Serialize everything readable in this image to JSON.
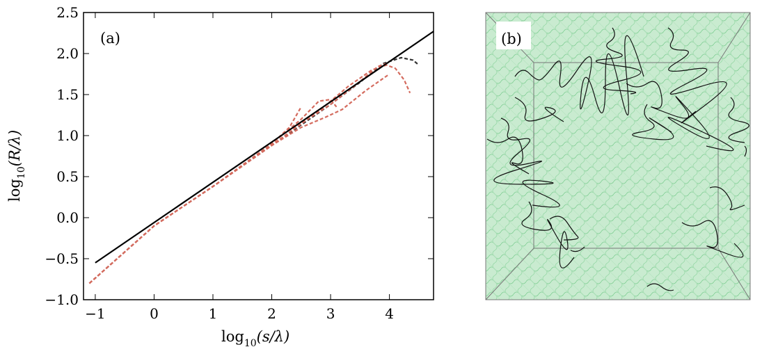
{
  "chart_data": [
    {
      "type": "line",
      "panel_label": "(a)",
      "xlabel_main": "log",
      "xlabel_sub": "10",
      "xlabel_arg": "(s/λ)",
      "ylabel_main": "log",
      "ylabel_sub": "10",
      "ylabel_arg": "(R/λ)",
      "xlim": [
        -1.2,
        4.75
      ],
      "ylim": [
        -1.0,
        2.5
      ],
      "xticks": [
        -1,
        0,
        1,
        2,
        3,
        4
      ],
      "xtick_labels": [
        "−1",
        "0",
        "1",
        "2",
        "3",
        "4"
      ],
      "yticks": [
        -1.0,
        -0.5,
        0.0,
        0.5,
        1.0,
        1.5,
        2.0,
        2.5
      ],
      "ytick_labels": [
        "−1.0",
        "−0.5",
        "0.0",
        "0.5",
        "1.0",
        "1.5",
        "2.0",
        "2.5"
      ],
      "grid": false,
      "fit_line": {
        "color": "#000000",
        "style": "solid",
        "points": [
          [
            -1.0,
            -0.55
          ],
          [
            4.75,
            2.27
          ]
        ]
      },
      "series": [
        {
          "color": "#333333",
          "style": "dashed",
          "points": [
            [
              -1.1,
              -0.8
            ],
            [
              0,
              -0.1
            ],
            [
              1,
              0.38
            ],
            [
              2,
              0.88
            ],
            [
              3,
              1.38
            ],
            [
              3.5,
              1.65
            ],
            [
              3.9,
              1.88
            ],
            [
              4.2,
              1.95
            ],
            [
              4.4,
              1.92
            ],
            [
              4.5,
              1.86
            ]
          ]
        },
        {
          "color": "#d46b5e",
          "style": "dashed",
          "points": [
            [
              -1.1,
              -0.8
            ],
            [
              0,
              -0.1
            ],
            [
              1,
              0.38
            ],
            [
              2,
              0.9
            ],
            [
              2.3,
              1.1
            ],
            [
              2.5,
              1.35
            ]
          ]
        },
        {
          "color": "#d46b5e",
          "style": "dashed",
          "points": [
            [
              -1.1,
              -0.8
            ],
            [
              0,
              -0.1
            ],
            [
              1,
              0.38
            ],
            [
              2,
              0.9
            ],
            [
              2.5,
              1.2
            ],
            [
              2.8,
              1.42
            ],
            [
              3.0,
              1.44
            ],
            [
              3.1,
              1.35
            ]
          ]
        },
        {
          "color": "#d46b5e",
          "style": "dashed",
          "points": [
            [
              -1.1,
              -0.8
            ],
            [
              0,
              -0.1
            ],
            [
              1,
              0.38
            ],
            [
              2,
              0.88
            ],
            [
              2.5,
              1.15
            ],
            [
              3.0,
              1.38
            ],
            [
              3.4,
              1.6
            ],
            [
              3.8,
              1.84
            ],
            [
              3.95,
              1.88
            ]
          ]
        },
        {
          "color": "#d46b5e",
          "style": "dashed",
          "points": [
            [
              -1.1,
              -0.8
            ],
            [
              0,
              -0.1
            ],
            [
              1,
              0.38
            ],
            [
              2,
              0.88
            ],
            [
              2.5,
              1.1
            ],
            [
              2.9,
              1.22
            ],
            [
              3.2,
              1.32
            ],
            [
              3.6,
              1.55
            ],
            [
              3.9,
              1.7
            ],
            [
              4.0,
              1.75
            ]
          ]
        },
        {
          "color": "#d46b5e",
          "style": "dashed",
          "points": [
            [
              -1.1,
              -0.8
            ],
            [
              0,
              -0.1
            ],
            [
              1,
              0.38
            ],
            [
              2,
              0.88
            ],
            [
              2.8,
              1.3
            ],
            [
              3.3,
              1.6
            ],
            [
              3.7,
              1.8
            ],
            [
              3.95,
              1.86
            ],
            [
              4.1,
              1.82
            ],
            [
              4.25,
              1.68
            ],
            [
              4.35,
              1.52
            ]
          ]
        }
      ]
    },
    {
      "type": "other",
      "panel_label": "(b)",
      "background_color": "#a8dcb4",
      "strand_color": "#111111"
    }
  ]
}
